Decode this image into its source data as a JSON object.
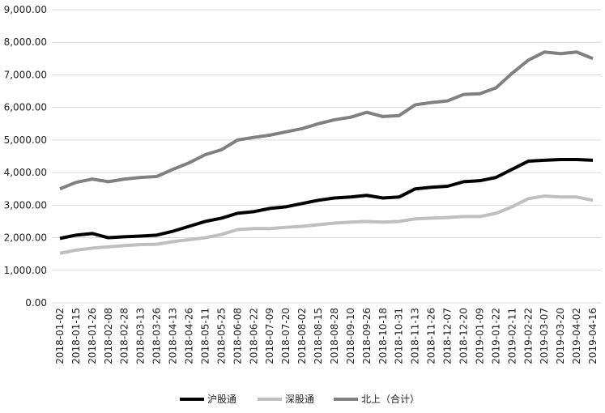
{
  "chart_data": {
    "type": "line",
    "categories": [
      "2018-01-02",
      "2018-01-15",
      "2018-01-26",
      "2018-02-08",
      "2018-02-28",
      "2018-03-13",
      "2018-03-26",
      "2018-04-13",
      "2018-04-26",
      "2018-05-11",
      "2018-05-25",
      "2018-06-08",
      "2018-06-22",
      "2018-07-09",
      "2018-07-20",
      "2018-08-02",
      "2018-08-15",
      "2018-08-28",
      "2018-09-10",
      "2018-09-26",
      "2018-10-18",
      "2018-10-31",
      "2018-11-13",
      "2018-11-26",
      "2018-12-07",
      "2018-12-20",
      "2019-01-09",
      "2019-01-22",
      "2019-02-11",
      "2019-02-22",
      "2019-03-07",
      "2019-03-20",
      "2019-04-02",
      "2019-04-16"
    ],
    "series": [
      {
        "name": "沪股通",
        "color": "#000000",
        "values": [
          1980,
          2080,
          2130,
          2000,
          2030,
          2050,
          2080,
          2200,
          2350,
          2500,
          2600,
          2750,
          2800,
          2900,
          2950,
          3050,
          3150,
          3220,
          3250,
          3300,
          3220,
          3250,
          3500,
          3550,
          3580,
          3720,
          3750,
          3850,
          4100,
          4350,
          4380,
          4400,
          4400,
          4380
        ]
      },
      {
        "name": "深股通",
        "color": "#bfbfbf",
        "values": [
          1520,
          1620,
          1680,
          1720,
          1760,
          1790,
          1800,
          1880,
          1940,
          2000,
          2100,
          2250,
          2280,
          2280,
          2320,
          2350,
          2400,
          2450,
          2480,
          2500,
          2480,
          2500,
          2580,
          2600,
          2620,
          2650,
          2650,
          2750,
          2950,
          3200,
          3280,
          3250,
          3250,
          3150
        ]
      },
      {
        "name": "北上（合计）",
        "color": "#808080",
        "values": [
          3500,
          3700,
          3800,
          3720,
          3800,
          3850,
          3880,
          4100,
          4300,
          4550,
          4700,
          5000,
          5080,
          5150,
          5250,
          5350,
          5500,
          5620,
          5700,
          5850,
          5720,
          5750,
          6080,
          6150,
          6200,
          6400,
          6420,
          6600,
          7050,
          7450,
          7700,
          7650,
          7700,
          7500
        ]
      }
    ],
    "ylim": [
      0,
      9000
    ],
    "yticks": [
      {
        "value": 0,
        "label": "0.00"
      },
      {
        "value": 1000,
        "label": "1,000.00"
      },
      {
        "value": 2000,
        "label": "2,000.00"
      },
      {
        "value": 3000,
        "label": "3,000.00"
      },
      {
        "value": 4000,
        "label": "4,000.00"
      },
      {
        "value": 5000,
        "label": "5,000.00"
      },
      {
        "value": 6000,
        "label": "6,000.00"
      },
      {
        "value": 7000,
        "label": "7,000.00"
      },
      {
        "value": 8000,
        "label": "8,000.00"
      },
      {
        "value": 9000,
        "label": "9,000.00"
      }
    ],
    "grid": true,
    "legend": "bottom"
  }
}
